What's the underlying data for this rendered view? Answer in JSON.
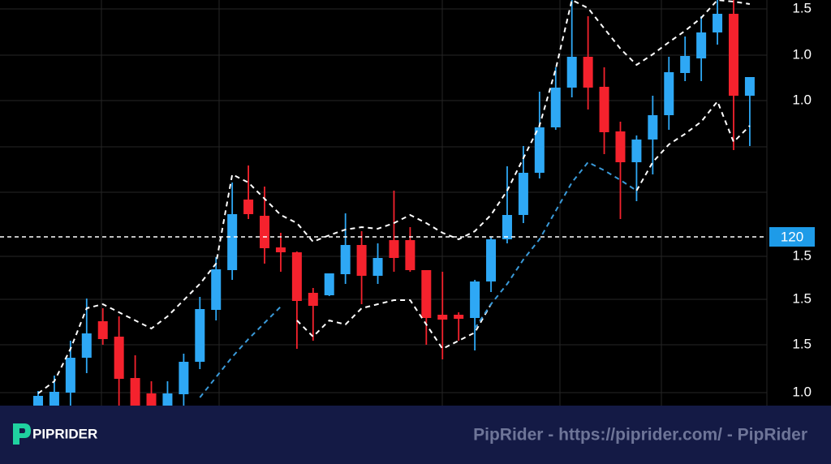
{
  "chart_data": {
    "type": "candlestick",
    "up_color": "#2ea8f5",
    "down_color": "#f5222d",
    "ylim": [
      99.2,
      149.2
    ],
    "y_axis_labels": [
      "1.5",
      "1.0",
      "1.0",
      "1.5",
      "1.5",
      "1.5",
      "1.0"
    ],
    "price_line": {
      "value": 120,
      "color": "#1e9be8"
    },
    "candles": {
      "open": [
        99.2,
        99.2,
        100.8,
        105.1,
        109.6,
        107.7,
        102.6,
        100.7,
        99.2,
        100.6,
        104.6,
        111.0,
        115.9,
        124.6,
        122.6,
        118.7,
        118.1,
        113.1,
        112.8,
        115.4,
        119.0,
        115.2,
        119.6,
        119.6,
        115.9,
        110.4,
        110.4,
        110.0,
        114.5,
        119.7,
        122.7,
        127.9,
        133.5,
        138.4,
        142.2,
        138.5,
        133.0,
        129.2,
        132.0,
        135.0,
        140.2,
        142.0,
        145.2,
        147.5,
        137.4
      ],
      "high": [
        101.0,
        102.9,
        107.2,
        112.4,
        111.2,
        110.2,
        105.4,
        102.2,
        102.2,
        105.6,
        112.6,
        117.5,
        126.7,
        128.8,
        126.2,
        120.5,
        118.2,
        113.7,
        115.5,
        122.9,
        120.7,
        119.2,
        125.7,
        121.2,
        115.9,
        115.7,
        110.7,
        114.7,
        120.0,
        128.7,
        131.2,
        137.9,
        140.9,
        149.2,
        147.2,
        140.9,
        134.2,
        132.5,
        137.4,
        142.2,
        144.7,
        147.2,
        149.2,
        149.2,
        139.7
      ],
      "low": [
        99.2,
        99.2,
        99.2,
        103.2,
        106.7,
        99.2,
        99.2,
        99.2,
        99.2,
        99.2,
        103.7,
        109.7,
        114.7,
        122.2,
        116.7,
        115.7,
        106.2,
        107.2,
        112.7,
        114.2,
        111.7,
        114.2,
        115.7,
        115.7,
        106.7,
        104.9,
        107.2,
        106.0,
        113.2,
        119.2,
        121.7,
        127.2,
        133.2,
        137.2,
        135.7,
        130.2,
        122.2,
        124.4,
        127.7,
        133.2,
        139.2,
        139.2,
        143.7,
        130.7,
        131.2
      ],
      "close": [
        100.4,
        100.9,
        105.1,
        108.1,
        107.4,
        102.5,
        99.2,
        99.2,
        100.7,
        104.6,
        111.1,
        116.0,
        122.8,
        122.8,
        118.6,
        118.1,
        112.1,
        111.5,
        115.5,
        119.0,
        115.2,
        117.4,
        117.4,
        115.9,
        110.0,
        109.8,
        109.9,
        114.5,
        119.7,
        122.7,
        127.9,
        133.5,
        138.4,
        142.2,
        138.4,
        132.9,
        129.2,
        132.0,
        135.0,
        140.3,
        142.3,
        145.2,
        147.5,
        137.4,
        139.7
      ]
    },
    "lines": [
      {
        "color": "#ffffff",
        "values": [
          100.7,
          102.2,
          106.2,
          111.2,
          111.7,
          110.7,
          109.7,
          108.7,
          110.2,
          112.2,
          114.2,
          116.7,
          127.7,
          126.7,
          124.7,
          122.7,
          121.7,
          119.4,
          120.2,
          120.9,
          121.2,
          121.0,
          121.7,
          122.7,
          121.7,
          120.5,
          119.7,
          120.7,
          122.7,
          125.7,
          129.7,
          133.7,
          140.7,
          149.2,
          148.2,
          145.7,
          143.2,
          141.2,
          142.5,
          144.0,
          145.4,
          147.0,
          149.2,
          149.0,
          148.7
        ]
      },
      {
        "color": "#ffffff",
        "values": [
          null,
          null,
          null,
          null,
          null,
          null,
          null,
          null,
          null,
          null,
          null,
          null,
          null,
          null,
          null,
          null,
          109.7,
          107.7,
          109.7,
          109.2,
          111.2,
          111.7,
          112.2,
          112.2,
          109.2,
          106.2,
          107.2,
          108.2,
          111.7,
          null,
          null,
          null,
          null,
          null,
          null,
          null,
          null,
          125.7,
          129.2,
          131.4,
          132.7,
          134.2,
          136.7,
          131.7,
          133.7
        ]
      },
      {
        "color": "#3a9ad9",
        "values": [
          null,
          null,
          null,
          null,
          null,
          null,
          null,
          null,
          null,
          null,
          100.2,
          102.7,
          105.2,
          107.4,
          109.4,
          111.4,
          null,
          null,
          null,
          null,
          null,
          null,
          null,
          null,
          null,
          null,
          null,
          108.7,
          111.7,
          114.2,
          117.2,
          119.7,
          123.2,
          126.7,
          129.2,
          128.2,
          127.0,
          125.7,
          null,
          null,
          null,
          null,
          null,
          null,
          null
        ]
      }
    ]
  },
  "footer": {
    "logo": "PIPRIDER",
    "watermark": "PipRider - https://piprider.com/ - PipRider"
  }
}
